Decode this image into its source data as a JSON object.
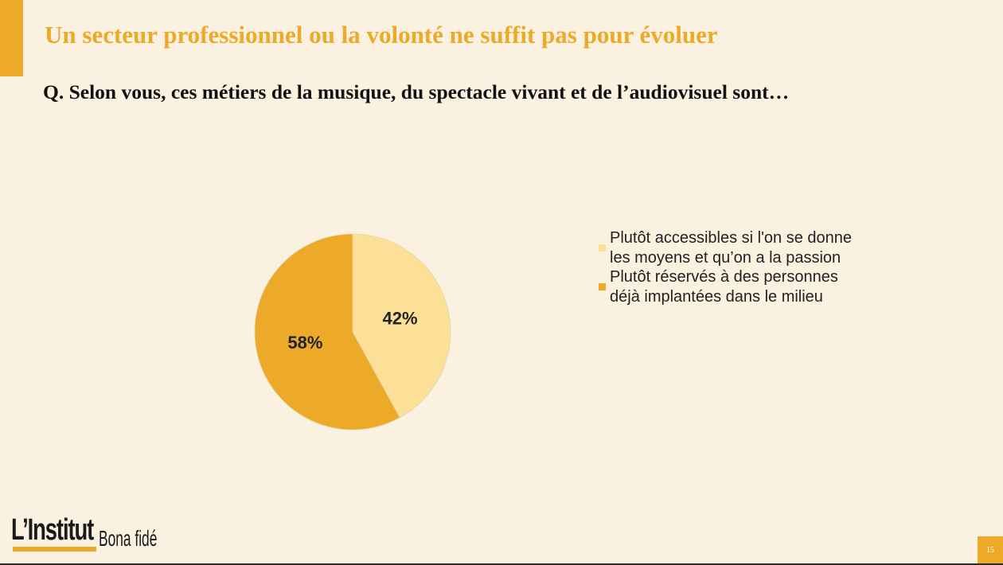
{
  "slide": {
    "title": "Un secteur professionnel ou la volonté ne suffit pas pour évoluer",
    "question": "Q. Selon vous, ces métiers de la musique, du spectacle vivant et de l’audiovisuel sont…",
    "page_number": "15"
  },
  "logo": {
    "main": "L’Institut",
    "sub": "Bona fidé"
  },
  "colors": {
    "accent": "#ECAA28",
    "background": "#FAF1E1",
    "slice_light": "#FCE098",
    "slice_dark": "#ECAA28"
  },
  "chart_data": {
    "type": "pie",
    "title": "",
    "start_angle_deg": 0,
    "direction": "clockwise",
    "legend_position": "right",
    "slices": [
      {
        "label": "Plutôt accessibles si l'on se donne les moyens et qu’on a la passion",
        "value": 42,
        "display": "42%",
        "color": "#FCE098"
      },
      {
        "label": "Plutôt réservés à des personnes déjà implantées dans le milieu",
        "value": 58,
        "display": "58%",
        "color": "#ECAA28"
      }
    ]
  }
}
